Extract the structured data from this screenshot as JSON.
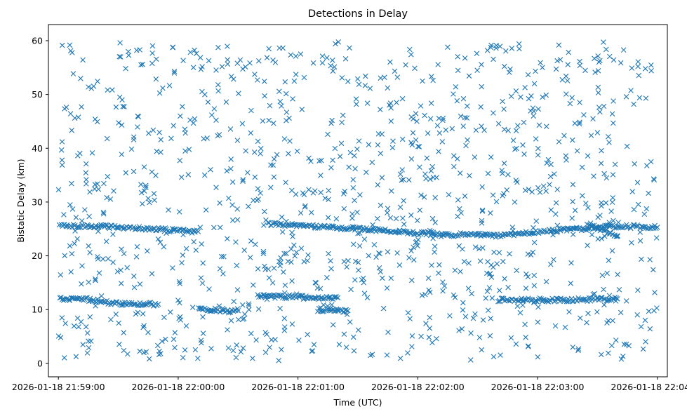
{
  "chart_data": {
    "type": "scatter",
    "title": "Detections in Delay",
    "xlabel": "Time (UTC)",
    "ylabel": "Bistatic Delay (km)",
    "marker": "x",
    "color": "#1f77b4",
    "grid": false,
    "legend": "none",
    "xlim": [
      "2026-01-18 21:58:55",
      "2026-01-18 22:04:05"
    ],
    "ylim": [
      -2.5,
      63
    ],
    "x_ticks": [
      "2026-01-18 21:59:00",
      "2026-01-18 22:00:00",
      "2026-01-18 22:01:00",
      "2026-01-18 22:02:00",
      "2026-01-18 22:03:00",
      "2026-01-18 22:04:00"
    ],
    "y_ticks": [
      "0",
      "10",
      "20",
      "30",
      "40",
      "50",
      "60"
    ],
    "y_tick_values": [
      0,
      10,
      20,
      30,
      40,
      50,
      60
    ],
    "time_range": [
      "2026-01-18 21:59:00",
      "2026-01-18 22:04:00"
    ],
    "delay_range": [
      0,
      60
    ],
    "tracks": [
      {
        "points": [
          [
            "2026-01-18 21:59:00",
            12.0
          ],
          [
            "2026-01-18 21:59:12",
            12.0
          ],
          [
            "2026-01-18 21:59:30",
            11.1
          ],
          [
            "2026-01-18 21:59:50",
            11.0
          ]
        ]
      },
      {
        "points": [
          [
            "2026-01-18 21:59:00",
            25.5
          ],
          [
            "2026-01-18 21:59:20",
            25.5
          ],
          [
            "2026-01-18 21:59:45",
            25.0
          ],
          [
            "2026-01-18 22:00:10",
            24.5
          ]
        ]
      },
      {
        "points": [
          [
            "2026-01-18 22:00:10",
            10.0
          ],
          [
            "2026-01-18 22:00:30",
            9.8
          ]
        ]
      },
      {
        "points": [
          [
            "2026-01-18 22:00:40",
            12.5
          ],
          [
            "2026-01-18 22:01:20",
            12.2
          ]
        ]
      },
      {
        "points": [
          [
            "2026-01-18 22:00:45",
            26.0
          ],
          [
            "2026-01-18 22:01:30",
            25.0
          ],
          [
            "2026-01-18 22:02:10",
            24.0
          ],
          [
            "2026-01-18 22:02:40",
            23.8
          ],
          [
            "2026-01-18 22:03:00",
            24.5
          ],
          [
            "2026-01-18 22:03:40",
            25.5
          ],
          [
            "2026-01-18 22:04:00",
            25.3
          ]
        ]
      },
      {
        "points": [
          [
            "2026-01-18 22:01:10",
            10.0
          ],
          [
            "2026-01-18 22:01:25",
            9.8
          ]
        ]
      },
      {
        "points": [
          [
            "2026-01-18 22:02:40",
            11.8
          ],
          [
            "2026-01-18 22:03:20",
            11.8
          ],
          [
            "2026-01-18 22:03:40",
            12.0
          ]
        ]
      },
      {
        "points": [
          [
            "2026-01-18 22:03:25",
            26.0
          ],
          [
            "2026-01-18 22:03:40",
            23.6
          ]
        ]
      }
    ],
    "scatter": [
      {
        "region": "background",
        "x_range": [
          "2026-01-18 21:59:00",
          "2026-01-18 22:04:00"
        ],
        "y_range": [
          0.5,
          60
        ],
        "approx_count": 1100
      }
    ]
  }
}
